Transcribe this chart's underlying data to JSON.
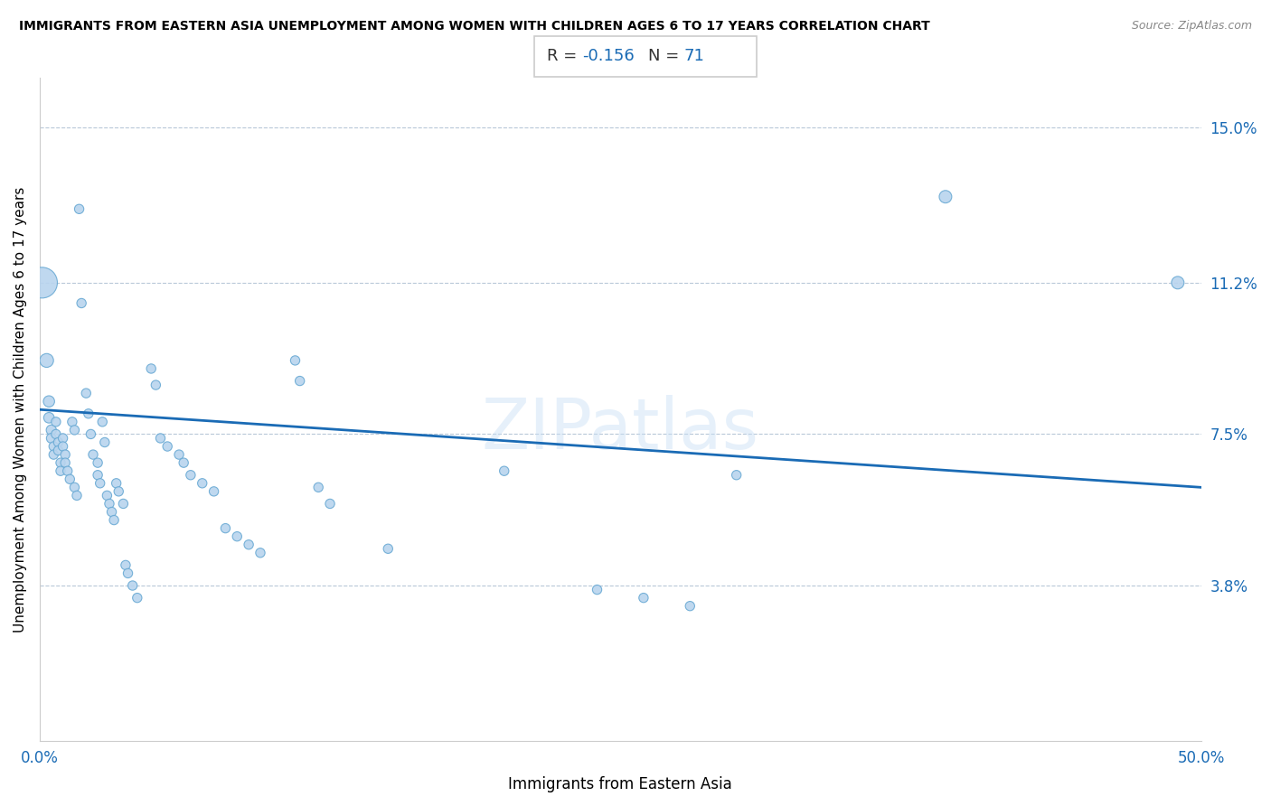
{
  "title": "IMMIGRANTS FROM EASTERN ASIA UNEMPLOYMENT AMONG WOMEN WITH CHILDREN AGES 6 TO 17 YEARS CORRELATION CHART",
  "source": "Source: ZipAtlas.com",
  "xlabel": "Immigrants from Eastern Asia",
  "ylabel": "Unemployment Among Women with Children Ages 6 to 17 years",
  "R_label": "R = ",
  "R_val": "-0.156",
  "N_label": "N = ",
  "N_val": "71",
  "xlim": [
    0.0,
    0.5
  ],
  "ylim": [
    0.0,
    0.162
  ],
  "ytick_right_labels": [
    "15.0%",
    "11.2%",
    "7.5%",
    "3.8%"
  ],
  "ytick_right_values": [
    0.15,
    0.112,
    0.075,
    0.038
  ],
  "scatter_color": "#b8d4ee",
  "scatter_edge_color": "#6aaad4",
  "line_color": "#1a6bb5",
  "watermark": "ZIPatlas",
  "line_x0": 0.0,
  "line_y0": 0.081,
  "line_x1": 0.5,
  "line_y1": 0.062,
  "points": [
    [
      0.001,
      0.112
    ],
    [
      0.003,
      0.093
    ],
    [
      0.004,
      0.083
    ],
    [
      0.004,
      0.079
    ],
    [
      0.005,
      0.076
    ],
    [
      0.005,
      0.074
    ],
    [
      0.006,
      0.072
    ],
    [
      0.006,
      0.07
    ],
    [
      0.007,
      0.078
    ],
    [
      0.007,
      0.075
    ],
    [
      0.008,
      0.073
    ],
    [
      0.008,
      0.071
    ],
    [
      0.009,
      0.068
    ],
    [
      0.009,
      0.066
    ],
    [
      0.01,
      0.074
    ],
    [
      0.01,
      0.072
    ],
    [
      0.011,
      0.07
    ],
    [
      0.011,
      0.068
    ],
    [
      0.012,
      0.066
    ],
    [
      0.013,
      0.064
    ],
    [
      0.014,
      0.078
    ],
    [
      0.015,
      0.076
    ],
    [
      0.015,
      0.062
    ],
    [
      0.016,
      0.06
    ],
    [
      0.017,
      0.13
    ],
    [
      0.018,
      0.107
    ],
    [
      0.02,
      0.085
    ],
    [
      0.021,
      0.08
    ],
    [
      0.022,
      0.075
    ],
    [
      0.023,
      0.07
    ],
    [
      0.025,
      0.068
    ],
    [
      0.025,
      0.065
    ],
    [
      0.026,
      0.063
    ],
    [
      0.027,
      0.078
    ],
    [
      0.028,
      0.073
    ],
    [
      0.029,
      0.06
    ],
    [
      0.03,
      0.058
    ],
    [
      0.031,
      0.056
    ],
    [
      0.032,
      0.054
    ],
    [
      0.033,
      0.063
    ],
    [
      0.034,
      0.061
    ],
    [
      0.036,
      0.058
    ],
    [
      0.037,
      0.043
    ],
    [
      0.038,
      0.041
    ],
    [
      0.04,
      0.038
    ],
    [
      0.042,
      0.035
    ],
    [
      0.048,
      0.091
    ],
    [
      0.05,
      0.087
    ],
    [
      0.052,
      0.074
    ],
    [
      0.055,
      0.072
    ],
    [
      0.06,
      0.07
    ],
    [
      0.062,
      0.068
    ],
    [
      0.065,
      0.065
    ],
    [
      0.07,
      0.063
    ],
    [
      0.075,
      0.061
    ],
    [
      0.08,
      0.052
    ],
    [
      0.085,
      0.05
    ],
    [
      0.09,
      0.048
    ],
    [
      0.095,
      0.046
    ],
    [
      0.11,
      0.093
    ],
    [
      0.112,
      0.088
    ],
    [
      0.12,
      0.062
    ],
    [
      0.125,
      0.058
    ],
    [
      0.15,
      0.047
    ],
    [
      0.2,
      0.066
    ],
    [
      0.24,
      0.037
    ],
    [
      0.26,
      0.035
    ],
    [
      0.28,
      0.033
    ],
    [
      0.3,
      0.065
    ],
    [
      0.39,
      0.133
    ],
    [
      0.49,
      0.112
    ]
  ],
  "point_sizes_raw": [
    600,
    120,
    80,
    70,
    65,
    60,
    55,
    55,
    55,
    55,
    55,
    55,
    55,
    55,
    55,
    55,
    55,
    55,
    55,
    55,
    55,
    55,
    55,
    55,
    55,
    55,
    55,
    55,
    55,
    55,
    55,
    55,
    55,
    55,
    55,
    55,
    55,
    55,
    55,
    55,
    55,
    55,
    55,
    55,
    55,
    55,
    55,
    55,
    55,
    55,
    55,
    55,
    55,
    55,
    55,
    55,
    55,
    55,
    55,
    55,
    55,
    55,
    55,
    55,
    55,
    55,
    55,
    55,
    55,
    100,
    100
  ]
}
